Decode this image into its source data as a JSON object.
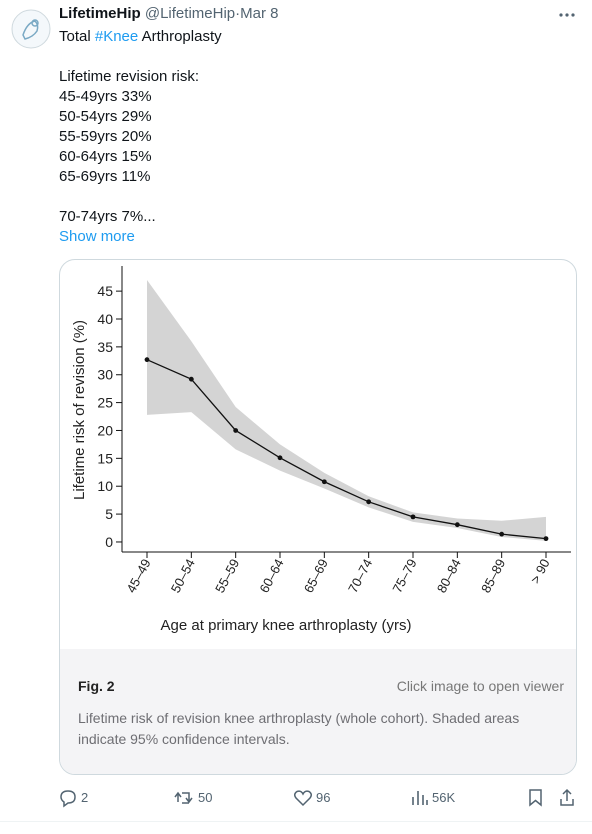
{
  "tweet": {
    "name": "LifetimeHip",
    "handle": "@LifetimeHip",
    "separator": "·",
    "date": "Mar 8",
    "text_prefix": "Total ",
    "hashtag": "#Knee",
    "text_suffix": " Arthroplasty",
    "lines": [
      "Lifetime revision risk:",
      "45-49yrs 33%",
      "50-54yrs 29%",
      "55-59yrs 20%",
      "60-64yrs 15%",
      "65-69yrs 11%",
      "70-74yrs 7%..."
    ],
    "show_more": "Show more",
    "fig_label": "Fig. 2",
    "viewer": "Click image to open viewer",
    "caption": "Lifetime risk of revision knee arthroplasty (whole cohort). Shaded areas indicate 95% confidence intervals.",
    "actions": {
      "replies": "2",
      "reposts": "50",
      "likes": "96",
      "views": "56K"
    }
  },
  "chart_data": {
    "type": "line",
    "x_label": "Age at primary knee arthroplasty (yrs)",
    "y_label": "Lifetime risk of revision (%)",
    "categories": [
      "45–49",
      "50–54",
      "55–59",
      "60–64",
      "65–69",
      "70–74",
      "75–79",
      "80–84",
      "85–89",
      "> 90"
    ],
    "series": [
      {
        "color": "#111111",
        "band_color": "#d4d4d4",
        "values": [
          32.7,
          29.2,
          20.0,
          15.1,
          10.8,
          7.2,
          4.5,
          3.1,
          1.4,
          0.6
        ],
        "lower": [
          22.8,
          23.3,
          16.6,
          12.8,
          9.6,
          6.2,
          3.6,
          2.5,
          0.9,
          0.2
        ],
        "upper": [
          47.0,
          36.0,
          24.2,
          17.5,
          12.4,
          8.2,
          5.3,
          4.2,
          3.8,
          4.5
        ]
      }
    ],
    "ylim": [
      -1.8,
      49.5
    ],
    "yticks": [
      0,
      5,
      10,
      15,
      20,
      25,
      30,
      35,
      40,
      45
    ]
  }
}
